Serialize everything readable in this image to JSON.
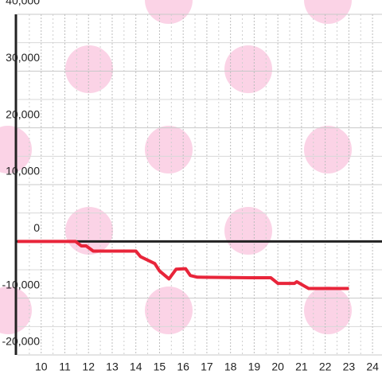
{
  "chart_data": {
    "type": "line",
    "x": [
      9,
      11.45,
      11.7,
      11.9,
      12.2,
      14.0,
      14.2,
      14.6,
      14.8,
      15.0,
      15.4,
      15.7,
      16.1,
      16.3,
      16.6,
      18.8,
      19.7,
      20.0,
      20.7,
      20.8,
      21.3,
      23.0
    ],
    "series": [
      {
        "color": "#e8253a",
        "values": [
          0,
          0,
          -800,
          -800,
          -1700,
          -1700,
          -2700,
          -3500,
          -3900,
          -5200,
          -6600,
          -4900,
          -4800,
          -6000,
          -6300,
          -6400,
          -6400,
          -7400,
          -7400,
          -7100,
          -8300,
          -8300
        ]
      }
    ],
    "xlim": [
      9,
      24.4
    ],
    "xticks": [
      10,
      11,
      12,
      13,
      14,
      15,
      16,
      17,
      18,
      19,
      20,
      21,
      22,
      23,
      24
    ],
    "ylim": [
      -20000,
      40000
    ],
    "yticks": [
      {
        "value": 40000,
        "label": "40,000"
      },
      {
        "value": 30000,
        "label": "30,000"
      },
      {
        "value": 20000,
        "label": "20,000"
      },
      {
        "value": 10000,
        "label": "10,000"
      },
      0,
      {
        "value": -10000,
        "label": "-10,000"
      },
      {
        "value": -20000,
        "label": "-20,000"
      }
    ],
    "minor_yticks": [
      35000,
      25000,
      15000,
      5000,
      -5000,
      -15000
    ],
    "minor_xticks": [
      9.5,
      10.5,
      11.5,
      12.5,
      13.5,
      14.5,
      15.5,
      16.5,
      17.5,
      18.5,
      19.5,
      20.5,
      21.5,
      22.5,
      23.5
    ],
    "grid": true
  }
}
